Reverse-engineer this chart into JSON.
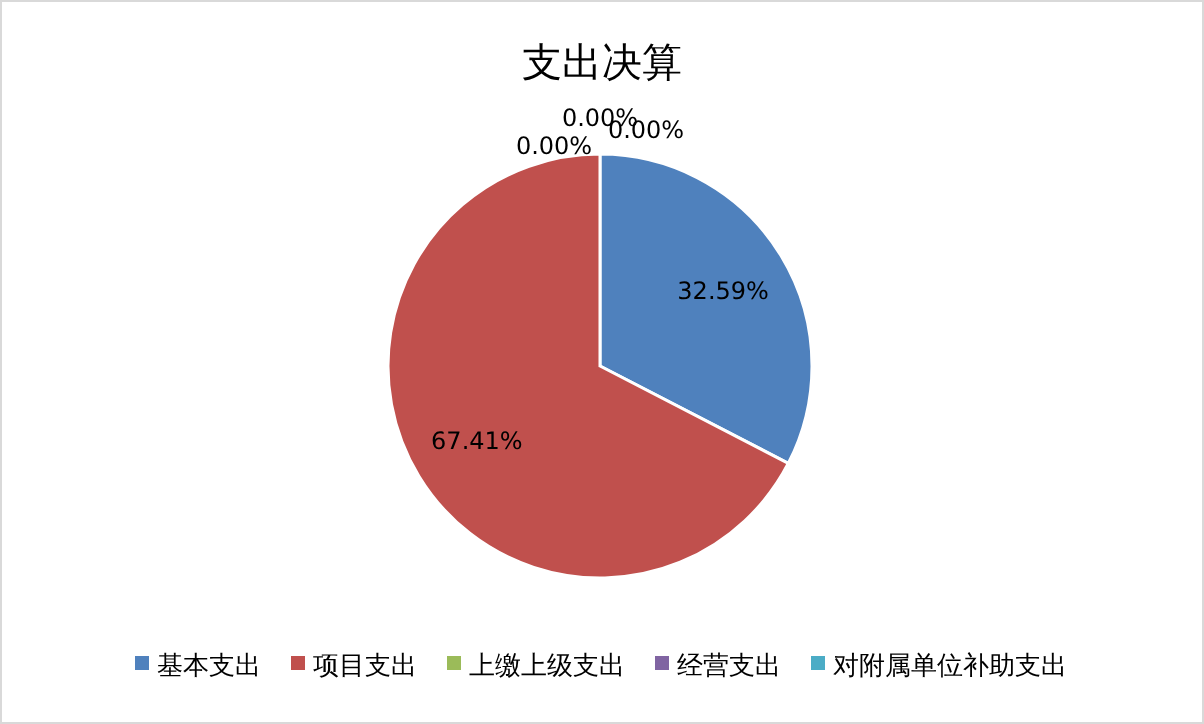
{
  "chart_data": {
    "type": "pie",
    "title": "支出决算",
    "categories": [
      "基本支出",
      "项目支出",
      "上缴上级支出",
      "经营支出",
      "对附属单位补助支出"
    ],
    "values": [
      32.59,
      67.41,
      0,
      0,
      0
    ],
    "colors": [
      "#4f81bd",
      "#c0504d",
      "#9bbb59",
      "#8064a2",
      "#4bacc6"
    ],
    "value_labels": [
      "32.59%",
      "67.41%",
      "0.00%",
      "0.00%",
      "0.00%"
    ],
    "legend": "bottom"
  }
}
